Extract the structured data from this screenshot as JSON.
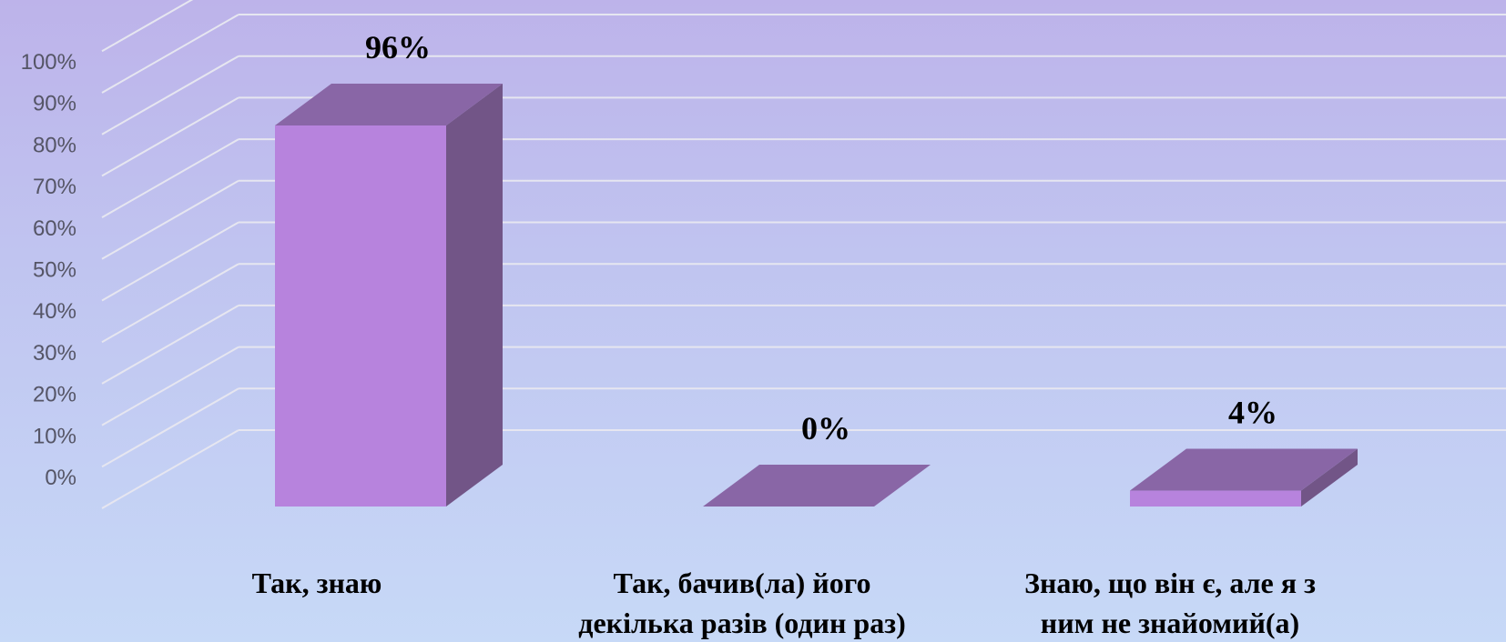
{
  "chart_data": {
    "type": "bar",
    "categories": [
      [
        "Так, знаю"
      ],
      [
        "Так, бачив(ла) його",
        "декілька разів (один раз)"
      ],
      [
        "Знаю, що він є, але я з",
        "ним не знайомий(а)"
      ]
    ],
    "values": [
      96,
      0,
      4
    ],
    "data_labels": [
      "96%",
      "0%",
      "4%"
    ],
    "ylim": [
      0,
      100
    ],
    "yticks": [
      "0%",
      "10%",
      "20%",
      "30%",
      "40%",
      "50%",
      "60%",
      "70%",
      "80%",
      "90%",
      "100%"
    ],
    "style": "3d-column",
    "grid": true,
    "legend": "none",
    "colors": {
      "bar_front": "#b783dd",
      "bar_top": "#8966a6",
      "bar_side": "#725587",
      "gridline": "#e6e6f0"
    }
  }
}
